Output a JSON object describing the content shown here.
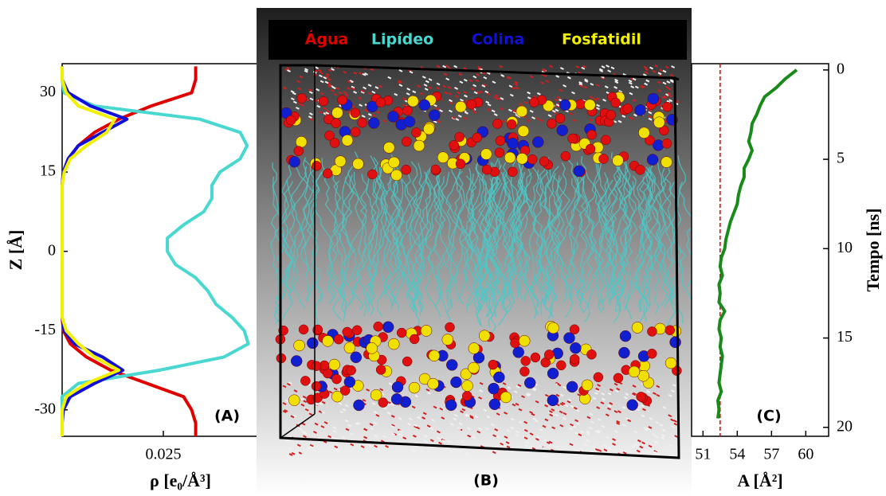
{
  "chart_data": [
    {
      "type": "line",
      "panel_label": "(A)",
      "x_label": "ρ [e₀/Å³]",
      "y_label": "Z [Å]",
      "xlim": [
        0,
        0.0506
      ],
      "xticks": [
        0.025
      ],
      "ylim": [
        -35,
        35.5
      ],
      "yticks": [
        -30,
        -15,
        0,
        15,
        30
      ],
      "y_axis_side": "left",
      "y": [
        35,
        32.5,
        30,
        27.5,
        25,
        22.5,
        20,
        17.5,
        15,
        12.5,
        10,
        7.5,
        5,
        2.5,
        0,
        -2.5,
        -5,
        -7.5,
        -10,
        -12.5,
        -15,
        -17.5,
        -20,
        -22.5,
        -25,
        -27.5,
        -30,
        -32.5,
        -35
      ],
      "series": [
        {
          "name": "Água",
          "color": "#e00000",
          "values": [
            0.033,
            0.033,
            0.032,
            0.022,
            0.014,
            0.008,
            0.004,
            0.0015,
            0.0003,
            0,
            0,
            0,
            0,
            0,
            0,
            0,
            0,
            0,
            0,
            0,
            0.0003,
            0.002,
            0.006,
            0.012,
            0.021,
            0.03,
            0.032,
            0.033,
            0.033
          ]
        },
        {
          "name": "Lipídeo",
          "color": "#48d8d0",
          "values": [
            0,
            0,
            0.0005,
            0.008,
            0.034,
            0.044,
            0.0457,
            0.044,
            0.039,
            0.037,
            0.037,
            0.035,
            0.03,
            0.026,
            0.026,
            0.028,
            0.033,
            0.036,
            0.038,
            0.042,
            0.045,
            0.046,
            0.04,
            0.024,
            0.004,
            0,
            0,
            0,
            0
          ]
        },
        {
          "name": "Colina",
          "color": "#1010d8",
          "values": [
            0,
            0,
            0.0015,
            0.007,
            0.016,
            0.01,
            0.004,
            0.0015,
            0.0003,
            0,
            0,
            0,
            0,
            0,
            0,
            0,
            0,
            0,
            0,
            0,
            0.0005,
            0.003,
            0.01,
            0.015,
            0.008,
            0.002,
            0.0003,
            0,
            0
          ]
        },
        {
          "name": "Fosfatidil",
          "color": "#f0f000",
          "values": [
            0,
            0,
            0.001,
            0.004,
            0.013,
            0.011,
            0.006,
            0.002,
            0.0005,
            0,
            0,
            0,
            0,
            0,
            0,
            0,
            0,
            0,
            0,
            0,
            0.001,
            0.004,
            0.008,
            0.014,
            0.006,
            0.001,
            0,
            0,
            0
          ]
        }
      ]
    },
    {
      "type": "line",
      "panel_label": "(C)",
      "x_label": "A [Å²]",
      "y_label": "Tempo [ns]",
      "xlim": [
        50,
        62
      ],
      "xticks": [
        51,
        54,
        57,
        60
      ],
      "ylim": [
        20.5,
        -0.35
      ],
      "yticks": [
        0,
        5,
        10,
        15,
        20
      ],
      "y_axis_side": "right",
      "vline": 52.5,
      "vline_color": "#e00000",
      "y": [
        0,
        0.5,
        1,
        1.5,
        2,
        2.5,
        3,
        3.5,
        4,
        4.5,
        5,
        5.5,
        6,
        6.5,
        7,
        7.5,
        8,
        8.5,
        9,
        9.5,
        10,
        10.5,
        11,
        11.5,
        12,
        12.5,
        13,
        13.5,
        14,
        14.5,
        15,
        15.5,
        16,
        16.5,
        17,
        17.5,
        18,
        18.5,
        19,
        19.5
      ],
      "series": [
        {
          "color": "#1a8a1a",
          "values": [
            59.2,
            58.2,
            57.4,
            56.4,
            56.0,
            55.7,
            55.3,
            55.2,
            55.0,
            55.3,
            55.0,
            54.6,
            54.6,
            54.3,
            54.1,
            54.0,
            53.7,
            53.4,
            53.2,
            53.0,
            52.9,
            52.6,
            52.5,
            52.7,
            52.4,
            52.5,
            52.4,
            52.9,
            52.5,
            52.4,
            52.6,
            52.5,
            52.7,
            52.6,
            52.5,
            52.4,
            52.6,
            52.3,
            52.4,
            52.3
          ]
        }
      ]
    }
  ],
  "snapshot": {
    "label": "(B)"
  }
}
